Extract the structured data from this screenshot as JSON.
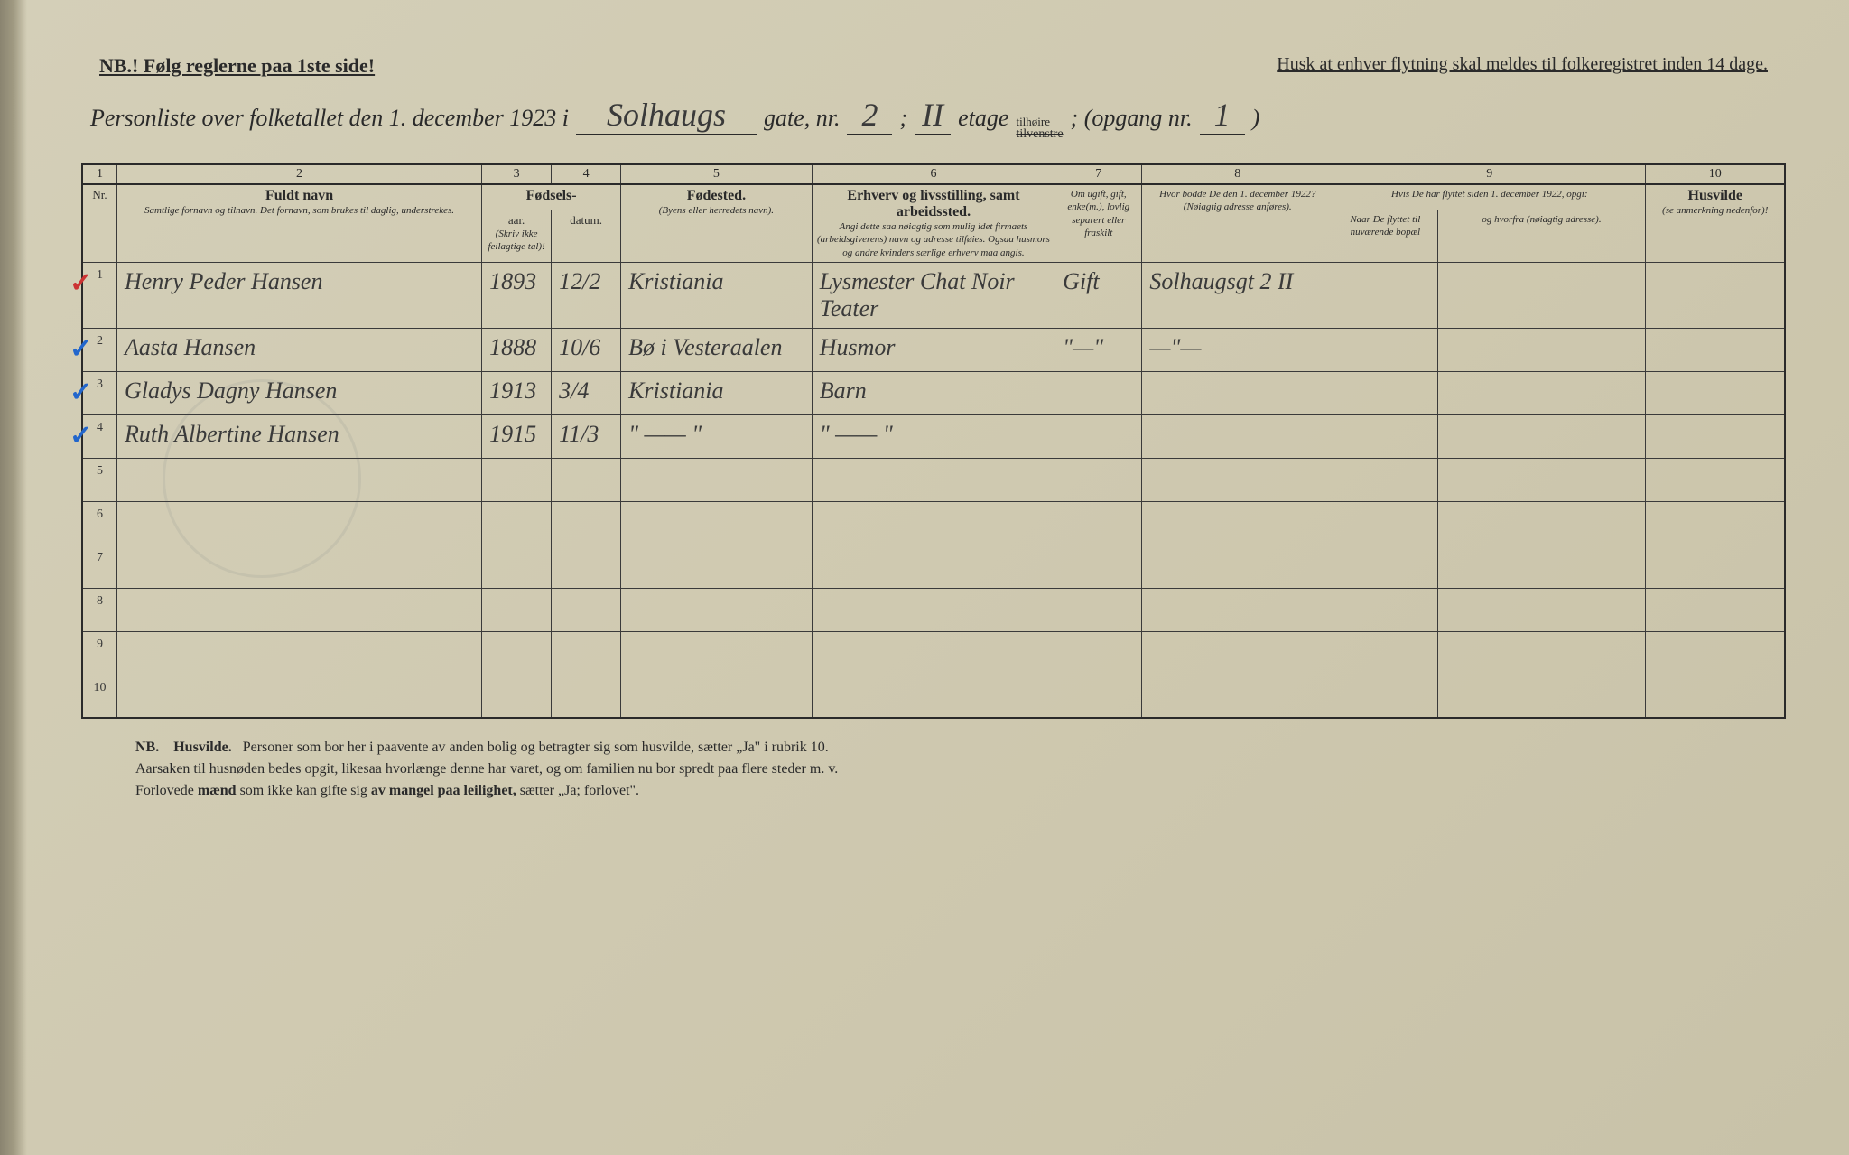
{
  "header": {
    "nb_text": "NB.! Følg reglerne paa 1ste side!",
    "husk_text": "Husk at enhver flytning skal meldes til folkeregistret inden 14 dage.",
    "personliste_prefix": "Personliste over folketallet den 1. december 1923 i",
    "street_name": "Solhaugs",
    "gate_label": "gate, nr.",
    "gate_nr": "2",
    "semicolon": ";",
    "etage_nr": "II",
    "etage_label": "etage",
    "tilhoire": "tilhøire",
    "tilvenstre": "tilvenstre",
    "opgang_label": "; (opgang nr.",
    "opgang_nr": "1",
    "close_paren": ")"
  },
  "columns": {
    "numbers": [
      "1",
      "2",
      "3",
      "4",
      "5",
      "6",
      "7",
      "8",
      "9",
      "10"
    ],
    "nr": "Nr.",
    "fuldt_navn": "Fuldt navn",
    "fuldt_navn_sub": "Samtlige fornavn og tilnavn. Det fornavn, som brukes til daglig, understrekes.",
    "fodsels": "Fødsels-",
    "aar": "aar.",
    "datum": "datum.",
    "aar_sub": "(Skriv ikke feilagtige tal)!",
    "fodested": "Fødested.",
    "fodested_sub": "(Byens eller herredets navn).",
    "erhverv": "Erhverv og livsstilling, samt arbeidssted.",
    "erhverv_sub": "Angi dette saa nøiagtig som mulig idet firmaets (arbeidsgiverens) navn og adresse tilføies. Ogsaa husmors og andre kvinders særlige erhverv maa angis.",
    "om_ugift": "Om ugift, gift, enke(m.), lovlig separert eller fraskilt",
    "hvor_bodde": "Hvor bodde De den 1. december 1922?",
    "hvor_bodde_sub": "(Nøiagtig adresse anføres).",
    "hvis_flyttet": "Hvis De har flyttet siden 1. december 1922, opgi:",
    "naar": "Naar De flyttet til nuværende bopæl",
    "hvorfra": "og hvorfra (nøiagtig adresse).",
    "husvilde": "Husvilde",
    "husvilde_sub": "(se anmerkning nedenfor)!"
  },
  "rows": [
    {
      "nr": "1",
      "name": "Henry Peder Hansen",
      "year": "1893",
      "date": "12/2",
      "birthplace": "Kristiania",
      "occupation": "Lysmester Chat Noir Teater",
      "marital": "Gift",
      "prev_addr": "Solhaugsgt 2 II",
      "when": "",
      "from": "",
      "husvilde": "",
      "check_color": "red"
    },
    {
      "nr": "2",
      "name": "Aasta Hansen",
      "year": "1888",
      "date": "10/6",
      "birthplace": "Bø i Vesteraalen",
      "occupation": "Husmor",
      "marital": "\"—\"",
      "prev_addr": "—\"—",
      "when": "",
      "from": "",
      "husvilde": "",
      "check_color": "blue"
    },
    {
      "nr": "3",
      "name": "Gladys Dagny Hansen",
      "year": "1913",
      "date": "3/4",
      "birthplace": "Kristiania",
      "occupation": "Barn",
      "marital": "",
      "prev_addr": "",
      "when": "",
      "from": "",
      "husvilde": "",
      "check_color": "blue"
    },
    {
      "nr": "4",
      "name": "Ruth Albertine Hansen",
      "year": "1915",
      "date": "11/3",
      "birthplace": "\" —— \"",
      "occupation": "\" —— \"",
      "marital": "",
      "prev_addr": "",
      "when": "",
      "from": "",
      "husvilde": "",
      "check_color": "blue"
    },
    {
      "nr": "5",
      "name": "",
      "year": "",
      "date": "",
      "birthplace": "",
      "occupation": "",
      "marital": "",
      "prev_addr": "",
      "when": "",
      "from": "",
      "husvilde": "",
      "check_color": ""
    },
    {
      "nr": "6",
      "name": "",
      "year": "",
      "date": "",
      "birthplace": "",
      "occupation": "",
      "marital": "",
      "prev_addr": "",
      "when": "",
      "from": "",
      "husvilde": "",
      "check_color": ""
    },
    {
      "nr": "7",
      "name": "",
      "year": "",
      "date": "",
      "birthplace": "",
      "occupation": "",
      "marital": "",
      "prev_addr": "",
      "when": "",
      "from": "",
      "husvilde": "",
      "check_color": ""
    },
    {
      "nr": "8",
      "name": "",
      "year": "",
      "date": "",
      "birthplace": "",
      "occupation": "",
      "marital": "",
      "prev_addr": "",
      "when": "",
      "from": "",
      "husvilde": "",
      "check_color": ""
    },
    {
      "nr": "9",
      "name": "",
      "year": "",
      "date": "",
      "birthplace": "",
      "occupation": "",
      "marital": "",
      "prev_addr": "",
      "when": "",
      "from": "",
      "husvilde": "",
      "check_color": ""
    },
    {
      "nr": "10",
      "name": "",
      "year": "",
      "date": "",
      "birthplace": "",
      "occupation": "",
      "marital": "",
      "prev_addr": "",
      "when": "",
      "from": "",
      "husvilde": "",
      "check_color": ""
    }
  ],
  "footer": {
    "nb": "NB.",
    "husvilde_bold": "Husvilde.",
    "line1": "Personer som bor her i paavente av anden bolig og betragter sig som husvilde, sætter „Ja\" i rubrik 10.",
    "line2": "Aarsaken til husnøden bedes opgit, likesaa hvorlænge denne har varet, og om familien nu bor spredt paa flere steder m. v.",
    "line3_a": "Forlovede ",
    "line3_bold": "mænd",
    "line3_b": " som ikke kan gifte sig ",
    "line3_bold2": "av mangel paa leilighet,",
    "line3_c": " sætter „Ja; forlovet\"."
  },
  "colors": {
    "paper": "#d4cfb8",
    "ink": "#2a2a2a",
    "handwriting": "#3a3a3a",
    "blue_check": "#2266cc",
    "red_check": "#cc3333"
  }
}
